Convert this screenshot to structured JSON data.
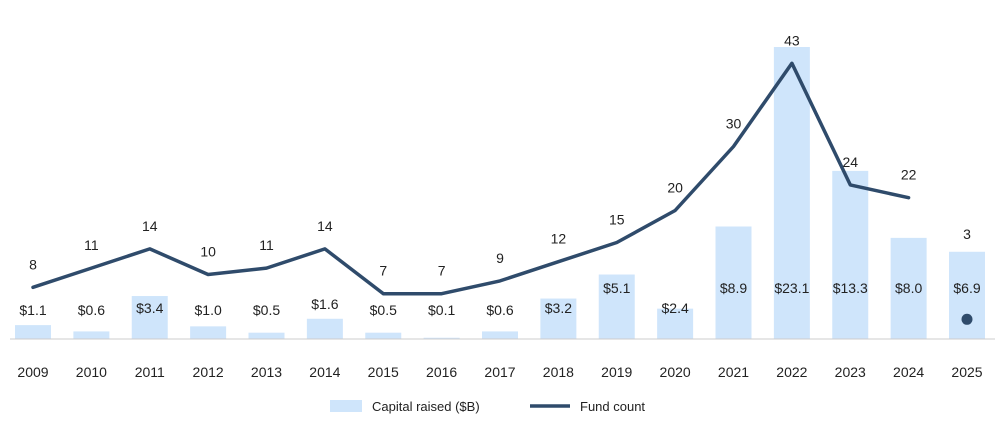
{
  "chart_data": {
    "type": "bar",
    "categories": [
      "2009",
      "2010",
      "2011",
      "2012",
      "2013",
      "2014",
      "2015",
      "2016",
      "2017",
      "2018",
      "2019",
      "2020",
      "2021",
      "2022",
      "2023",
      "2024",
      "2025"
    ],
    "series": [
      {
        "name": "Capital raised ($B)",
        "type": "bar",
        "values": [
          1.1,
          0.6,
          3.4,
          1.0,
          0.5,
          1.6,
          0.5,
          0.1,
          0.6,
          3.2,
          5.1,
          2.4,
          8.9,
          23.1,
          13.3,
          8.0,
          6.9
        ],
        "labels": [
          "$1.1",
          "$0.6",
          "$3.4",
          "$1.0",
          "$0.5",
          "$1.6",
          "$0.5",
          "$0.1",
          "$0.6",
          "$3.2",
          "$5.1",
          "$2.4",
          "$8.9",
          "$23.1",
          "$13.3",
          "$8.0",
          "$6.9"
        ],
        "color": "#cfe5fb"
      },
      {
        "name": "Fund count",
        "type": "line",
        "values": [
          8,
          11,
          14,
          10,
          11,
          14,
          7,
          7,
          9,
          12,
          15,
          20,
          30,
          43,
          24,
          22,
          3
        ],
        "labels": [
          "8",
          "11",
          "14",
          "10",
          "11",
          "14",
          "7",
          "7",
          "9",
          "12",
          "15",
          "20",
          "30",
          "43",
          "24",
          "22",
          "3"
        ],
        "color": "#2f4b6b",
        "line_through": 16,
        "point_only": [
          16
        ]
      }
    ],
    "legend_position": "bottom-center",
    "grid": false
  }
}
